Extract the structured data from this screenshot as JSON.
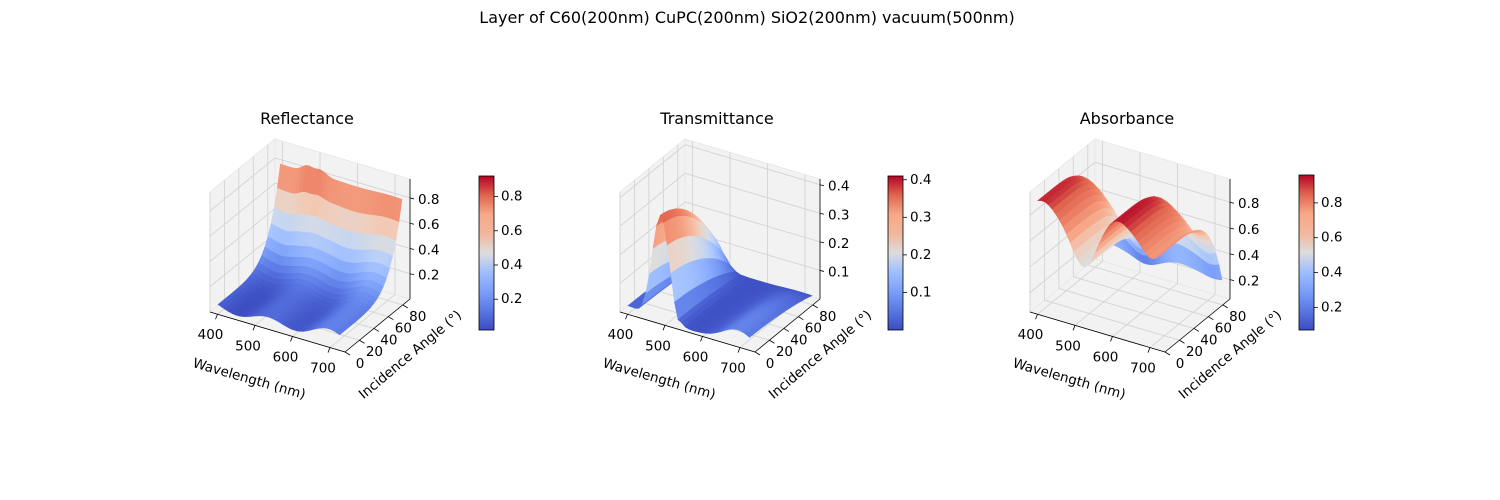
{
  "figure": {
    "suptitle": "Layer of C60(200nm) CuPC(200nm) SiO2(200nm) vacuum(500nm)"
  },
  "chart_data": [
    {
      "type": "surface3d",
      "title": "Reflectance",
      "colormap": "coolwarm",
      "xlabel": "Wavelength (nm)",
      "ylabel": "Incidence Angle (°)",
      "x_range": [
        380,
        740
      ],
      "y_range": [
        0,
        90
      ],
      "z_range": [
        0.0,
        0.95
      ],
      "x_ticks": [
        "400",
        "500",
        "600",
        "700"
      ],
      "y_ticks": [
        "0",
        "20",
        "40",
        "60",
        "80"
      ],
      "z_ticks": [
        "0.2",
        "0.4",
        "0.6",
        "0.8"
      ],
      "colorbar_range": [
        0.02,
        0.92
      ],
      "colorbar_ticks": [
        "0.2",
        "0.4",
        "0.6",
        "0.8"
      ],
      "grid": true,
      "samples": {
        "wavelength_nm": [
          400,
          500,
          600,
          700
        ],
        "angle_deg": [
          0,
          30,
          60,
          85
        ],
        "values": [
          [
            0.1,
            0.08,
            0.06,
            0.07
          ],
          [
            0.16,
            0.12,
            0.1,
            0.1
          ],
          [
            0.34,
            0.28,
            0.22,
            0.22
          ],
          [
            0.92,
            0.86,
            0.86,
            0.85
          ]
        ]
      }
    },
    {
      "type": "surface3d",
      "title": "Transmittance",
      "colormap": "coolwarm",
      "xlabel": "Wavelength (nm)",
      "ylabel": "Incidence Angle (°)",
      "x_range": [
        380,
        740
      ],
      "y_range": [
        0,
        90
      ],
      "z_range": [
        0.0,
        0.42
      ],
      "x_ticks": [
        "400",
        "500",
        "600",
        "700"
      ],
      "y_ticks": [
        "0",
        "20",
        "40",
        "60",
        "80"
      ],
      "z_ticks": [
        "0.1",
        "0.2",
        "0.3",
        "0.4"
      ],
      "colorbar_range": [
        0.0,
        0.41
      ],
      "colorbar_ticks": [
        "0.1",
        "0.2",
        "0.3",
        "0.4"
      ],
      "grid": true,
      "samples": {
        "wavelength_nm": [
          400,
          500,
          600,
          700
        ],
        "angle_deg": [
          0,
          30,
          60,
          85
        ],
        "values": [
          [
            0.03,
            0.36,
            0.02,
            0.05
          ],
          [
            0.03,
            0.35,
            0.02,
            0.05
          ],
          [
            0.02,
            0.28,
            0.02,
            0.03
          ],
          [
            0.01,
            0.06,
            0.01,
            0.01
          ]
        ]
      }
    },
    {
      "type": "surface3d",
      "title": "Absorbance",
      "colormap": "coolwarm",
      "xlabel": "Wavelength (nm)",
      "ylabel": "Incidence Angle (°)",
      "x_range": [
        380,
        740
      ],
      "y_range": [
        0,
        90
      ],
      "z_range": [
        0.05,
        0.98
      ],
      "x_ticks": [
        "400",
        "500",
        "600",
        "700"
      ],
      "y_ticks": [
        "0",
        "20",
        "40",
        "60",
        "80"
      ],
      "z_ticks": [
        "0.2",
        "0.4",
        "0.6",
        "0.8"
      ],
      "colorbar_range": [
        0.07,
        0.96
      ],
      "colorbar_ticks": [
        "0.2",
        "0.4",
        "0.6",
        "0.8"
      ],
      "grid": true,
      "samples": {
        "wavelength_nm": [
          400,
          500,
          600,
          700
        ],
        "angle_deg": [
          0,
          30,
          60,
          85
        ],
        "values": [
          [
            0.86,
            0.55,
            0.92,
            0.7
          ],
          [
            0.82,
            0.52,
            0.88,
            0.66
          ],
          [
            0.7,
            0.45,
            0.74,
            0.55
          ],
          [
            0.1,
            0.08,
            0.14,
            0.12
          ]
        ]
      }
    }
  ]
}
